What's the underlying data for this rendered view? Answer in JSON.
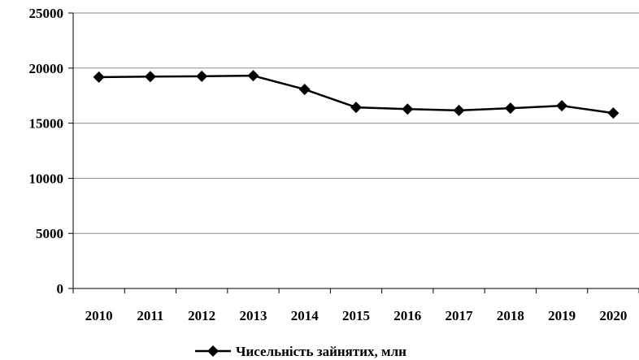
{
  "chart_data": {
    "type": "line",
    "title": "",
    "xlabel": "",
    "ylabel": "",
    "categories": [
      "2010",
      "2011",
      "2012",
      "2013",
      "2014",
      "2015",
      "2016",
      "2017",
      "2018",
      "2019",
      "2020"
    ],
    "series": [
      {
        "name": "Чисельність зайнятих, млн",
        "values": [
          19180,
          19230,
          19260,
          19310,
          18070,
          16440,
          16280,
          16160,
          16360,
          16580,
          15920
        ],
        "marker": "diamond",
        "color": "#000000"
      }
    ],
    "ylim": [
      0,
      25000
    ],
    "yticks": [
      0,
      5000,
      10000,
      15000,
      20000,
      25000
    ],
    "grid": "horizontal",
    "legend": "bottom-center"
  }
}
